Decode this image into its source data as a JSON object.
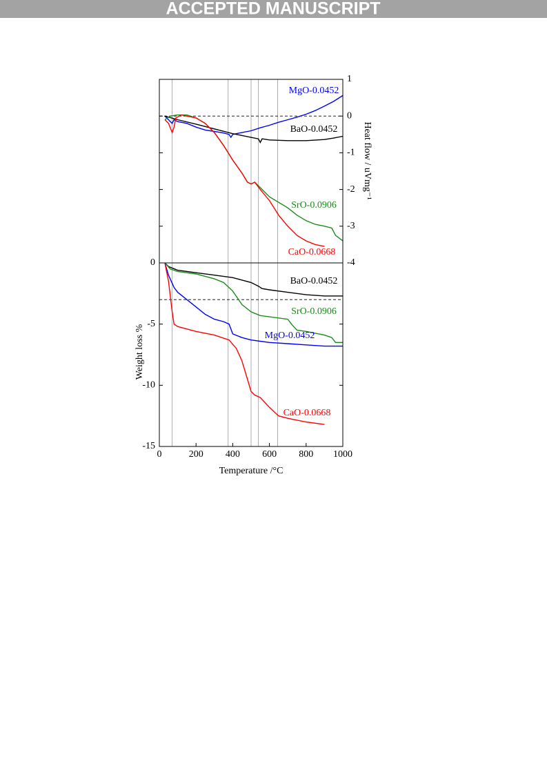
{
  "banner": "ACCEPTED MANUSCRIPT",
  "chart_data": [
    {
      "type": "line",
      "y_label": "Heat flow / uVmg⁻¹",
      "xlim": [
        0,
        1000
      ],
      "ylim": [
        -4,
        1
      ],
      "yticks": [
        1,
        0,
        -1,
        -2,
        -3,
        -4
      ],
      "vlines": [
        70,
        375,
        500,
        540,
        645
      ],
      "hline": 0,
      "series": [
        {
          "name": "MgO-0.0452",
          "color": "#0000ff",
          "x": [
            30,
            50,
            60,
            70,
            80,
            100,
            150,
            200,
            250,
            300,
            350,
            380,
            390,
            400,
            450,
            500,
            550,
            600,
            650,
            700,
            750,
            800,
            850,
            900,
            950,
            1000
          ],
          "values": [
            0,
            -0.1,
            -0.15,
            -0.2,
            -0.1,
            -0.15,
            -0.2,
            -0.3,
            -0.38,
            -0.42,
            -0.46,
            -0.5,
            -0.58,
            -0.5,
            -0.45,
            -0.4,
            -0.32,
            -0.25,
            -0.17,
            -0.1,
            -0.03,
            0.05,
            0.15,
            0.27,
            0.4,
            0.56
          ]
        },
        {
          "name": "BaO-0.0452",
          "color": "#000000",
          "x": [
            30,
            100,
            200,
            300,
            400,
            500,
            540,
            550,
            560,
            600,
            700,
            800,
            900,
            950,
            1000
          ],
          "values": [
            0,
            -0.1,
            -0.22,
            -0.35,
            -0.48,
            -0.58,
            -0.62,
            -0.72,
            -0.62,
            -0.65,
            -0.67,
            -0.67,
            -0.64,
            -0.6,
            -0.55
          ]
        },
        {
          "name": "SrO-0.0906",
          "color": "#1a8a1a",
          "x": [
            30,
            60,
            100,
            150,
            200,
            250,
            300,
            350,
            400,
            450,
            480,
            500,
            520,
            550,
            600,
            700,
            750,
            800,
            850,
            900,
            940,
            960,
            1000
          ],
          "values": [
            -0.1,
            0,
            0.03,
            0.03,
            -0.05,
            -0.2,
            -0.45,
            -0.8,
            -1.2,
            -1.55,
            -1.8,
            -1.85,
            -1.8,
            -1.95,
            -2.2,
            -2.5,
            -2.7,
            -2.85,
            -2.95,
            -3.0,
            -3.05,
            -3.25,
            -3.4
          ]
        },
        {
          "name": "CaO-0.0668",
          "color": "#ff0000",
          "x": [
            30,
            50,
            70,
            80,
            90,
            120,
            200,
            250,
            300,
            350,
            400,
            450,
            480,
            500,
            520,
            550,
            600,
            650,
            700,
            750,
            800,
            850,
            900
          ],
          "values": [
            -0.1,
            -0.2,
            -0.45,
            -0.3,
            -0.05,
            0.03,
            -0.05,
            -0.2,
            -0.45,
            -0.8,
            -1.2,
            -1.55,
            -1.8,
            -1.85,
            -1.8,
            -2.0,
            -2.3,
            -2.7,
            -3.0,
            -3.25,
            -3.4,
            -3.5,
            -3.55
          ]
        }
      ]
    },
    {
      "type": "line",
      "y_label": "Weight loss %",
      "x_label": "Temperature /°C",
      "xlim": [
        0,
        1000
      ],
      "xticks": [
        0,
        200,
        400,
        600,
        800,
        1000
      ],
      "ylim": [
        -15,
        0
      ],
      "yticks": [
        0,
        -5,
        -10,
        -15
      ],
      "vlines": [
        70,
        375,
        500,
        540,
        645
      ],
      "hline": -3,
      "series": [
        {
          "name": "BaO-0.0452",
          "color": "#000000",
          "x": [
            30,
            50,
            100,
            200,
            300,
            400,
            500,
            540,
            560,
            600,
            700,
            800,
            900,
            1000
          ],
          "values": [
            0,
            -0.3,
            -0.6,
            -0.8,
            -1.0,
            -1.2,
            -1.6,
            -1.9,
            -2.1,
            -2.2,
            -2.4,
            -2.6,
            -2.7,
            -2.7
          ]
        },
        {
          "name": "SrO-0.0906",
          "color": "#1a8a1a",
          "x": [
            30,
            60,
            100,
            200,
            300,
            350,
            400,
            450,
            500,
            550,
            700,
            720,
            750,
            800,
            900,
            940,
            960,
            1000
          ],
          "values": [
            0,
            -0.5,
            -0.7,
            -0.9,
            -1.3,
            -1.6,
            -2.3,
            -3.4,
            -4.0,
            -4.3,
            -4.6,
            -5.0,
            -5.5,
            -5.6,
            -5.9,
            -6.1,
            -6.5,
            -6.5
          ]
        },
        {
          "name": "MgO-0.0452",
          "color": "#0000ff",
          "x": [
            30,
            50,
            80,
            100,
            150,
            200,
            250,
            300,
            350,
            380,
            400,
            450,
            500,
            600,
            700,
            800,
            900,
            1000
          ],
          "values": [
            0,
            -1,
            -2,
            -2.4,
            -3.0,
            -3.6,
            -4.2,
            -4.6,
            -4.8,
            -5.0,
            -5.8,
            -6.1,
            -6.3,
            -6.5,
            -6.6,
            -6.7,
            -6.8,
            -6.8
          ]
        },
        {
          "name": "CaO-0.0668",
          "color": "#ff0000",
          "x": [
            30,
            50,
            70,
            80,
            100,
            200,
            300,
            380,
            420,
            450,
            480,
            500,
            520,
            550,
            600,
            650,
            700,
            800,
            900
          ],
          "values": [
            0,
            -1.5,
            -4,
            -5.0,
            -5.2,
            -5.6,
            -5.9,
            -6.3,
            -7.0,
            -8.0,
            -9.5,
            -10.5,
            -10.8,
            -11.0,
            -11.8,
            -12.5,
            -12.7,
            -13.0,
            -13.2
          ]
        }
      ]
    }
  ]
}
